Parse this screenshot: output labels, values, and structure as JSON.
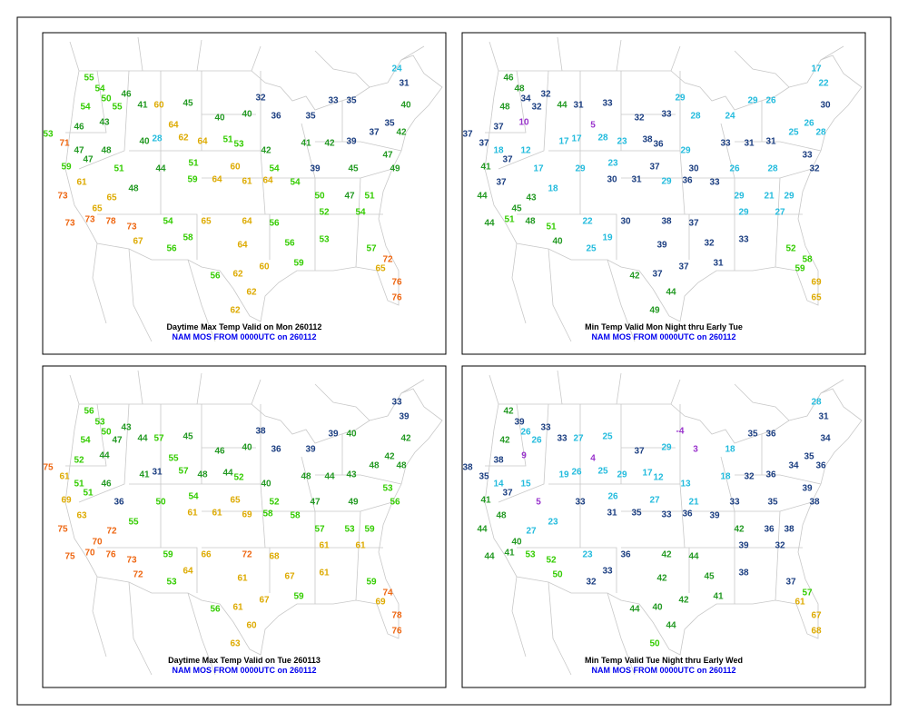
{
  "panels": [
    {
      "title": "Daytime Max Temp Valid on Mon 260112",
      "subtitle": "NAM MOS FROM 0000UTC on 260112",
      "values": [
        55,
        54,
        50,
        46,
        54,
        55,
        41,
        60,
        45,
        40,
        40,
        32,
        36,
        35,
        33,
        35,
        24,
        31,
        40,
        35,
        46,
        43,
        53,
        71,
        47,
        48,
        40,
        28,
        64,
        62,
        64,
        51,
        53,
        42,
        41,
        42,
        39,
        37,
        42,
        47,
        59,
        47,
        51,
        44,
        51,
        60,
        54,
        39,
        45,
        49,
        73,
        61,
        65,
        48,
        59,
        64,
        61,
        64,
        54,
        50,
        47,
        51,
        65,
        78,
        73,
        54,
        65,
        64,
        56,
        52,
        54,
        67,
        58,
        64,
        56,
        53,
        57,
        72,
        56,
        56,
        62,
        60,
        59,
        65,
        76,
        62,
        62,
        76,
        73,
        73
      ]
    },
    {
      "title": "Min Temp Valid Mon Night thru Early Tue",
      "subtitle": "NAM MOS FROM 0000UTC on 260112",
      "values": [
        46,
        48,
        34,
        32,
        48,
        32,
        44,
        31,
        33,
        32,
        33,
        29,
        28,
        24,
        29,
        26,
        17,
        22,
        30,
        26,
        37,
        10,
        37,
        37,
        18,
        12,
        17,
        17,
        5,
        28,
        23,
        38,
        36,
        29,
        33,
        31,
        31,
        25,
        28,
        33,
        41,
        37,
        17,
        29,
        23,
        37,
        30,
        26,
        28,
        32,
        44,
        37,
        43,
        18,
        30,
        31,
        29,
        36,
        33,
        29,
        21,
        29,
        45,
        48,
        51,
        22,
        30,
        38,
        37,
        29,
        27,
        40,
        19,
        39,
        32,
        33,
        52,
        58,
        25,
        42,
        37,
        37,
        31,
        59,
        69,
        44,
        49,
        65,
        44,
        51
      ]
    },
    {
      "title": "Daytime Max Temp Valid on Tue 260113",
      "subtitle": "NAM MOS FROM 0000UTC on 260112",
      "values": [
        56,
        53,
        50,
        43,
        54,
        47,
        44,
        57,
        45,
        46,
        40,
        38,
        36,
        39,
        39,
        40,
        33,
        39,
        42,
        42,
        52,
        44,
        75,
        61,
        51,
        46,
        41,
        31,
        55,
        57,
        48,
        44,
        52,
        40,
        48,
        44,
        43,
        48,
        48,
        53,
        69,
        51,
        36,
        50,
        54,
        65,
        52,
        47,
        49,
        56,
        75,
        63,
        72,
        55,
        61,
        61,
        69,
        58,
        58,
        57,
        53,
        59,
        70,
        76,
        73,
        59,
        66,
        72,
        68,
        61,
        61,
        72,
        64,
        61,
        67,
        61,
        59,
        74,
        53,
        56,
        61,
        67,
        59,
        69,
        78,
        60,
        63,
        76,
        75,
        70
      ]
    },
    {
      "title": "Min Temp Valid Tue Night thru Early Wed",
      "subtitle": "NAM MOS FROM 0000UTC on 260112",
      "values": [
        42,
        39,
        26,
        33,
        42,
        26,
        33,
        27,
        25,
        37,
        29,
        -4,
        3,
        18,
        35,
        36,
        28,
        31,
        34,
        35,
        38,
        9,
        38,
        35,
        14,
        15,
        19,
        26,
        4,
        25,
        29,
        17,
        12,
        13,
        18,
        32,
        36,
        34,
        36,
        39,
        41,
        37,
        5,
        33,
        26,
        27,
        21,
        33,
        35,
        38,
        44,
        48,
        27,
        23,
        31,
        35,
        33,
        36,
        39,
        42,
        36,
        38,
        40,
        53,
        52,
        23,
        36,
        42,
        44,
        39,
        32,
        50,
        33,
        42,
        45,
        38,
        37,
        57,
        32,
        44,
        40,
        42,
        41,
        61,
        67,
        44,
        50,
        68,
        44,
        41
      ]
    }
  ]
}
